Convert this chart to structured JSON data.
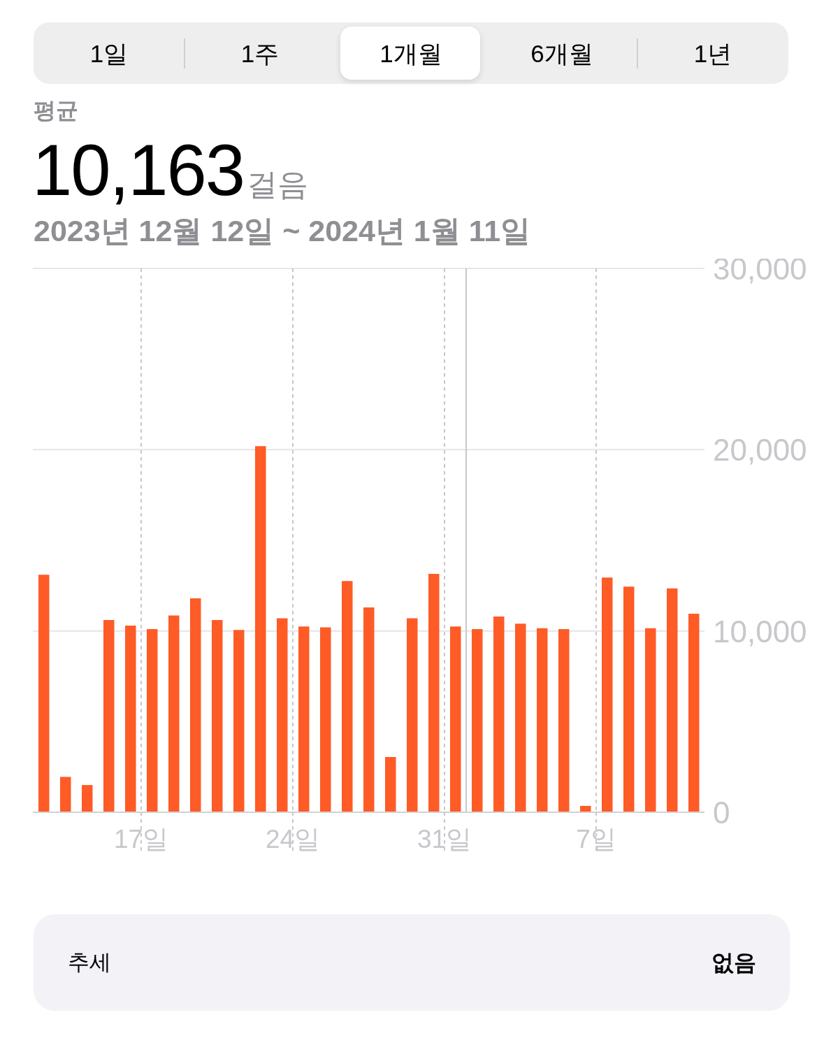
{
  "chart_data": {
    "type": "bar",
    "title": "10,163",
    "subtitle": "2023년 12월 12일 ~ 2024년 1월 11일",
    "annotations": [
      "1일",
      "1주",
      "1개월",
      "6개월",
      "1년",
      "평균",
      "걸음",
      "추세",
      "없음"
    ],
    "x": [
      "2023-12-12T12:00",
      "2023-12-13T12:00",
      "2023-12-14T12:00",
      "2023-12-15T12:00",
      "2023-12-16T12:00",
      "2023-12-17T12:00",
      "2023-12-18T12:00",
      "2023-12-19T12:00",
      "2023-12-20T12:00",
      "2023-12-21T12:00",
      "2023-12-22T12:00",
      "2023-12-23T12:00",
      "2023-12-24T12:00",
      "2023-12-25T12:00",
      "2023-12-26T12:00",
      "2023-12-27T12:00",
      "2023-12-28T12:00",
      "2023-12-29T12:00",
      "2023-12-30T12:00",
      "2023-12-31T12:00",
      "2024-01-01T12:00",
      "2024-01-02T12:00",
      "2024-01-03T12:00",
      "2024-01-04T12:00",
      "2024-01-05T12:00",
      "2024-01-06T12:00",
      "2024-01-07T12:00",
      "2024-01-08T12:00",
      "2024-01-09T12:00",
      "2024-01-10T12:00",
      "2024-01-11T12:00"
    ],
    "values": [
      13100,
      1950,
      1500,
      10600,
      10300,
      10100,
      10850,
      11800,
      10600,
      10050,
      20200,
      10700,
      10250,
      10200,
      12750,
      11300,
      3050,
      10700,
      13150,
      10250,
      10100,
      10800,
      10400,
      10150,
      10100,
      350,
      12950,
      12450,
      10150,
      12350,
      10950
    ],
    "color": "#fe5b26",
    "xlim": [
      "2023-12-12",
      "2024-01-12"
    ],
    "xticks": [
      {
        "value": "2023-12-17",
        "label": "17일"
      },
      {
        "value": "2023-12-24",
        "label": "24일"
      },
      {
        "value": "2023-12-31",
        "label": "31일"
      },
      {
        "value": "2024-01-07",
        "label": "7일"
      }
    ],
    "ylim": [
      0,
      30000
    ],
    "yticks": [
      0,
      {
        "value": 10000,
        "label": "10,000"
      },
      {
        "value": 20000,
        "label": "20,000"
      },
      {
        "value": 30000,
        "label": "30,000"
      }
    ],
    "grid": true,
    "ref_lines": [
      {
        "axis": "x",
        "value": "2024-01-01",
        "color": "#c7c7cc"
      }
    ]
  }
}
